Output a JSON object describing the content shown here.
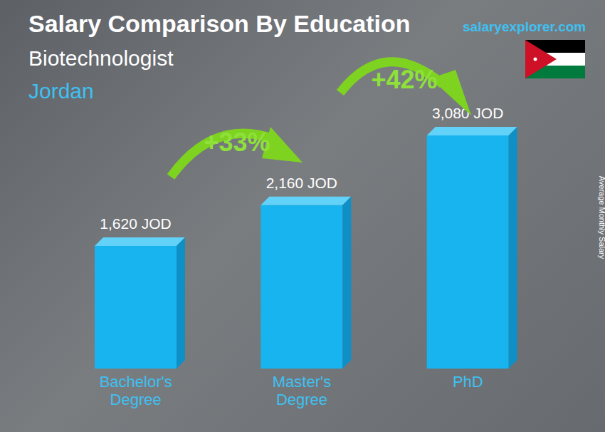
{
  "chart_data": {
    "type": "bar",
    "title": "Salary Comparison By Education",
    "subtitle": "Biotechnologist",
    "annotations": [
      "Jordan",
      "salaryexplorer.com",
      "+33%",
      "+42%"
    ],
    "ylabel": "Average Monthly Salary",
    "categories": [
      "Bachelor's Degree",
      "Master's Degree",
      "PhD"
    ],
    "values": [
      1620,
      2160,
      3080
    ],
    "value_labels": [
      "1,620 JOD",
      "2,160 JOD",
      "3,080 JOD"
    ],
    "color": "#18b4f0",
    "data_labels": true,
    "tick_labels": "x",
    "grid": false
  }
}
